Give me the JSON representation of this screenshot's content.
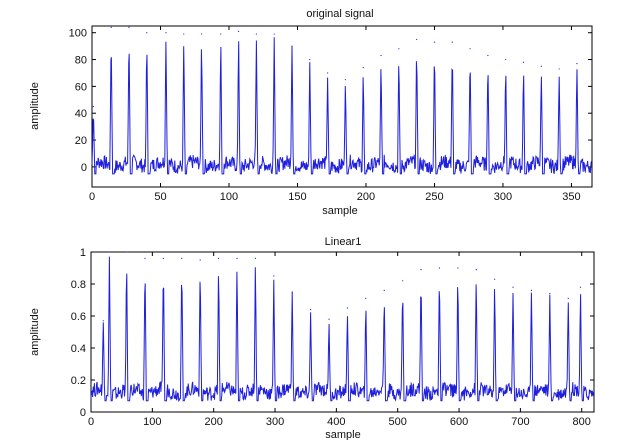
{
  "chart_data": [
    {
      "type": "line",
      "title": "original signal",
      "xlabel": "sample",
      "ylabel": "amplitude",
      "xlim": [
        0,
        365
      ],
      "ylim": [
        -15,
        105
      ],
      "xticks": [
        0,
        50,
        100,
        150,
        200,
        250,
        300,
        350
      ],
      "yticks": [
        0,
        20,
        40,
        60,
        80,
        100
      ],
      "color": "#1f1fdc",
      "baseline": 2,
      "peaks": [
        {
          "x": 1,
          "y": 45
        },
        {
          "x": 14,
          "y": 104
        },
        {
          "x": 27,
          "y": 104
        },
        {
          "x": 40,
          "y": 100
        },
        {
          "x": 54,
          "y": 100
        },
        {
          "x": 67,
          "y": 99
        },
        {
          "x": 80,
          "y": 99
        },
        {
          "x": 94,
          "y": 99
        },
        {
          "x": 107,
          "y": 101
        },
        {
          "x": 120,
          "y": 99
        },
        {
          "x": 133,
          "y": 99
        },
        {
          "x": 146,
          "y": 90
        },
        {
          "x": 159,
          "y": 80
        },
        {
          "x": 172,
          "y": 70
        },
        {
          "x": 185,
          "y": 65
        },
        {
          "x": 198,
          "y": 74
        },
        {
          "x": 211,
          "y": 83
        },
        {
          "x": 224,
          "y": 88
        },
        {
          "x": 237,
          "y": 95
        },
        {
          "x": 250,
          "y": 93
        },
        {
          "x": 263,
          "y": 93
        },
        {
          "x": 276,
          "y": 88
        },
        {
          "x": 289,
          "y": 83
        },
        {
          "x": 302,
          "y": 80
        },
        {
          "x": 315,
          "y": 78
        },
        {
          "x": 328,
          "y": 75
        },
        {
          "x": 341,
          "y": 73
        },
        {
          "x": 354,
          "y": 77
        }
      ]
    },
    {
      "type": "line",
      "title": "Linear1",
      "xlabel": "sample",
      "ylabel": "amplitude",
      "xlim": [
        0,
        820
      ],
      "ylim": [
        0,
        1
      ],
      "xticks": [
        0,
        100,
        200,
        300,
        400,
        500,
        600,
        700,
        800
      ],
      "yticks": [
        0,
        0.2,
        0.4,
        0.6,
        0.8,
        1
      ],
      "color": "#1f1fdc",
      "baseline": 0.13,
      "peaks": [
        {
          "x": 20,
          "y": 0.57
        },
        {
          "x": 30,
          "y": 1.0
        },
        {
          "x": 58,
          "y": 1.0
        },
        {
          "x": 88,
          "y": 0.96
        },
        {
          "x": 118,
          "y": 0.96
        },
        {
          "x": 148,
          "y": 0.96
        },
        {
          "x": 178,
          "y": 0.95
        },
        {
          "x": 208,
          "y": 0.96
        },
        {
          "x": 238,
          "y": 0.96
        },
        {
          "x": 268,
          "y": 0.96
        },
        {
          "x": 298,
          "y": 0.85
        },
        {
          "x": 328,
          "y": 0.75
        },
        {
          "x": 358,
          "y": 0.64
        },
        {
          "x": 388,
          "y": 0.58
        },
        {
          "x": 418,
          "y": 0.65
        },
        {
          "x": 448,
          "y": 0.71
        },
        {
          "x": 478,
          "y": 0.76
        },
        {
          "x": 508,
          "y": 0.82
        },
        {
          "x": 538,
          "y": 0.89
        },
        {
          "x": 568,
          "y": 0.9
        },
        {
          "x": 598,
          "y": 0.9
        },
        {
          "x": 628,
          "y": 0.89
        },
        {
          "x": 658,
          "y": 0.83
        },
        {
          "x": 688,
          "y": 0.78
        },
        {
          "x": 718,
          "y": 0.76
        },
        {
          "x": 748,
          "y": 0.74
        },
        {
          "x": 778,
          "y": 0.71
        },
        {
          "x": 798,
          "y": 0.78
        }
      ]
    }
  ]
}
